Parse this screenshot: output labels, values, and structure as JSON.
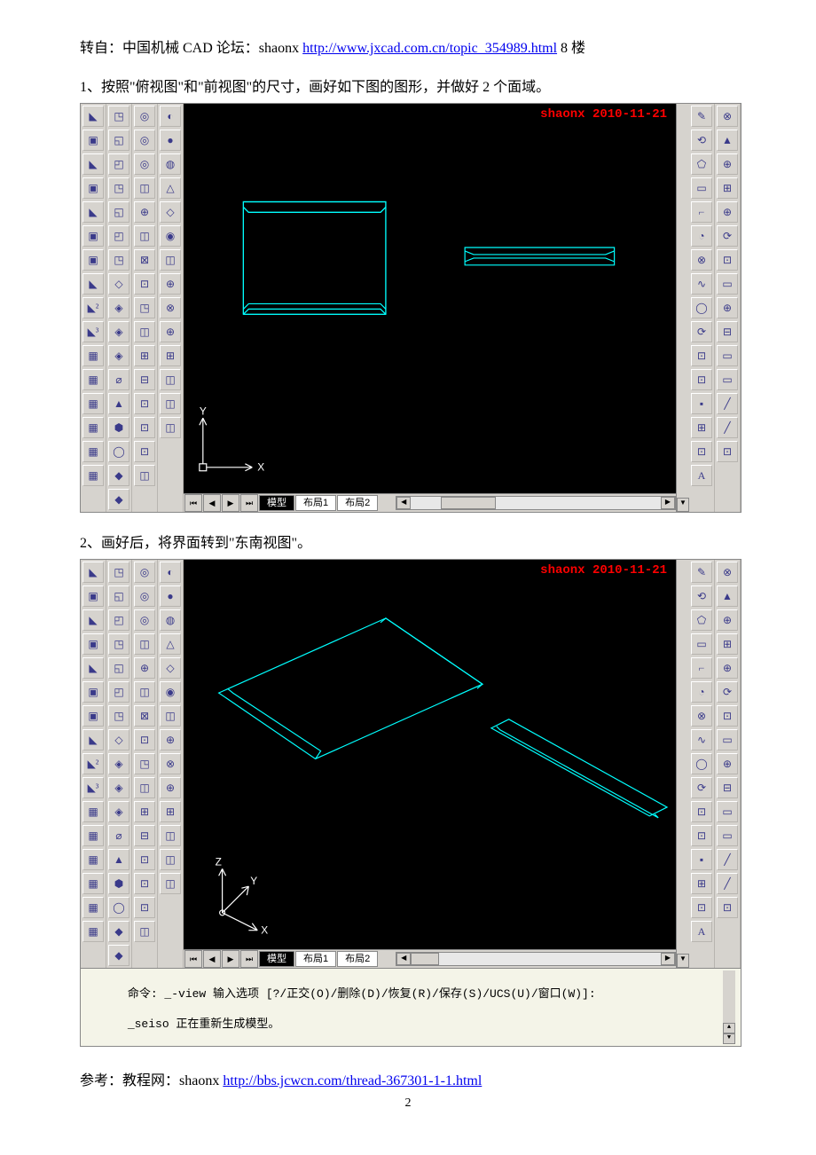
{
  "intro": {
    "prefix": "转自：中国机械 CAD 论坛：shaonx ",
    "url_text": "http://www.jxcad.com.cn/topic_354989.html",
    "suffix": " 8 楼"
  },
  "step1_text": "1、按照\"俯视图\"和\"前视图\"的尺寸，画好如下图的图形，并做好 2 个面域。",
  "step2_text": "2、画好后，将界面转到\"东南视图\"。",
  "footer": {
    "prefix": "参考：教程网：shaonx ",
    "url_text": "http://bbs.jcwcn.com/thread-367301-1-1.html"
  },
  "page_number": "2",
  "cad": {
    "watermark": "shaonx 2010-11-21",
    "tabs": {
      "model": "模型",
      "layout1": "布局1",
      "layout2": "布局2"
    },
    "cmd_line1": "命令: _-view 输入选项 [?/正交(O)/删除(D)/恢复(R)/保存(S)/UCS(U)/窗口(W)]:",
    "cmd_line2": "_seiso 正在重新生成模型。",
    "axes": {
      "x": "X",
      "y": "Y",
      "z": "Z"
    },
    "line_color": "#00ffff",
    "ucs_color": "#ffffff",
    "bg": "#000000"
  },
  "toolbar_left": {
    "col1": [
      "◣",
      "▣",
      "◣",
      "▣",
      "◣",
      "▣",
      "▣",
      "◣",
      "◣²",
      "◣³",
      "▦",
      "▦",
      "▦",
      "▦",
      "▦",
      "▦"
    ],
    "col2": [
      "◳",
      "◱",
      "◰",
      "◳",
      "◱",
      "◰",
      "◳",
      "◇",
      "◈",
      "◈",
      "◈",
      "⌀",
      "▲",
      "⬢",
      "◯",
      "◆",
      "◆"
    ],
    "col3": [
      "◎",
      "◎",
      "◎",
      "◫",
      "⊕",
      "◫",
      "⊠",
      "⊡",
      "◳",
      "◫",
      "⊞",
      "⊟",
      "⊡",
      "⊡",
      "⊡",
      "◫"
    ],
    "col4": [
      "◐",
      "●",
      "◍",
      "△",
      "◇",
      "◉",
      "◫",
      "⊕",
      "⊗",
      "⊕",
      "⊞",
      "◫",
      "◫",
      "◫"
    ]
  },
  "toolbar_right": {
    "col1": [
      "✎",
      "⟲",
      "⬠",
      "▭",
      "⌐",
      "◔",
      "⊗",
      "∿",
      "◯",
      "⟳",
      "⊡",
      "⊡",
      "▪",
      "⊞",
      "⊡",
      "A"
    ],
    "col2": [
      "⊗",
      "▲",
      "⊕",
      "⊞",
      "⊕",
      "⟳",
      "⊡",
      "▭",
      "⊕",
      "⊟",
      "▭",
      "▭",
      "╱",
      "╱",
      "⊡"
    ]
  }
}
